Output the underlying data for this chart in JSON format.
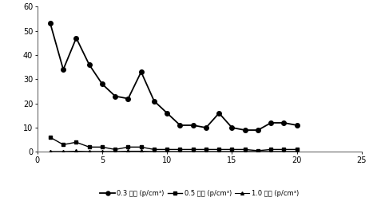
{
  "x": [
    1,
    2,
    3,
    4,
    5,
    6,
    7,
    8,
    9,
    10,
    11,
    12,
    13,
    14,
    15,
    16,
    17,
    18,
    19,
    20
  ],
  "y_03": [
    53,
    34,
    47,
    36,
    28,
    23,
    22,
    33,
    21,
    16,
    11,
    11,
    10,
    16,
    10,
    9,
    9,
    12,
    12,
    11
  ],
  "y_05": [
    6,
    3,
    4,
    2,
    2,
    1,
    2,
    2,
    1,
    1,
    1,
    1,
    1,
    1,
    1,
    1,
    0.5,
    1,
    1,
    1
  ],
  "y_10": [
    0.2,
    0.2,
    0.3,
    0.2,
    0.2,
    0.2,
    0.3,
    0.3,
    0.2,
    0.2,
    0.2,
    0.2,
    0.2,
    0.2,
    0.2,
    0.2,
    0.2,
    0.2,
    0.2,
    0.2
  ],
  "xlim": [
    0,
    25
  ],
  "ylim": [
    0,
    60
  ],
  "yticks": [
    0,
    10,
    20,
    30,
    40,
    50,
    60
  ],
  "xticks": [
    0,
    5,
    10,
    15,
    20,
    25
  ],
  "legend_labels": [
    "0.3 微米 (p/cm³)",
    "0.5 微米 (p/cm³)",
    "1.0 微米 (p/cm³)"
  ],
  "line_color": "#000000",
  "background_color": "#ffffff",
  "font_size": 7,
  "legend_font_size": 6
}
